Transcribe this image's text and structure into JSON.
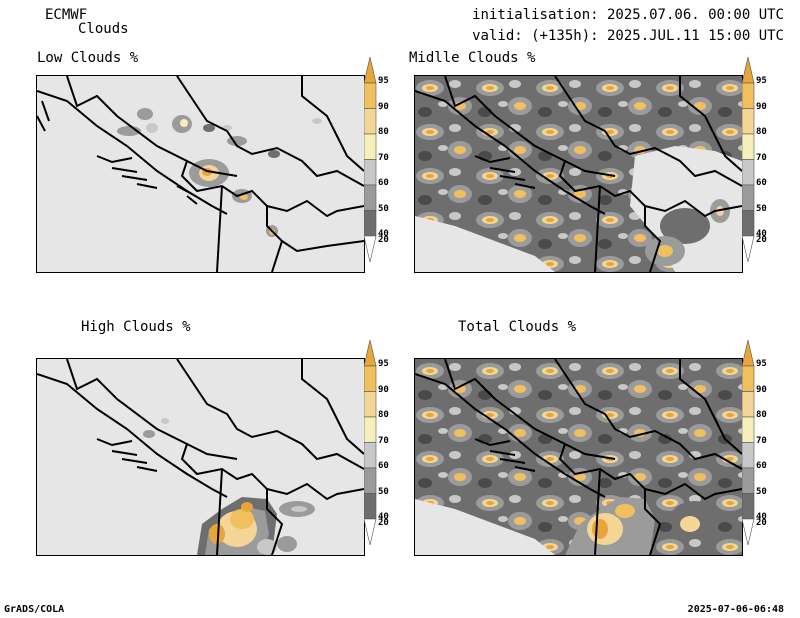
{
  "header": {
    "model": "ECMWF",
    "product": "Clouds",
    "initialisation": "initialisation: 2025.07.06. 00:00 UTC",
    "valid": "valid: (+135h): 2025.JUL.11 15:00 UTC"
  },
  "panels": [
    {
      "title": "Low Clouds %"
    },
    {
      "title": "Midlle Clouds %"
    },
    {
      "title": "High Clouds %"
    },
    {
      "title": "Total Clouds %"
    }
  ],
  "colorbar": {
    "levels": [
      "95",
      "90",
      "80",
      "70",
      "60",
      "50",
      "40",
      "20"
    ],
    "colors": {
      "c95": "#e8a53a",
      "c90": "#f0c060",
      "c80": "#f3d595",
      "c70": "#f5f0bb",
      "c60": "#c8c8c8",
      "c50": "#9b9b9b",
      "c40": "#6e6e6e",
      "c20": "#4a4a4a",
      "base": "#e6e6e6"
    }
  },
  "footer": {
    "left": "GrADS/COLA",
    "right": "2025-07-06-06:48"
  }
}
